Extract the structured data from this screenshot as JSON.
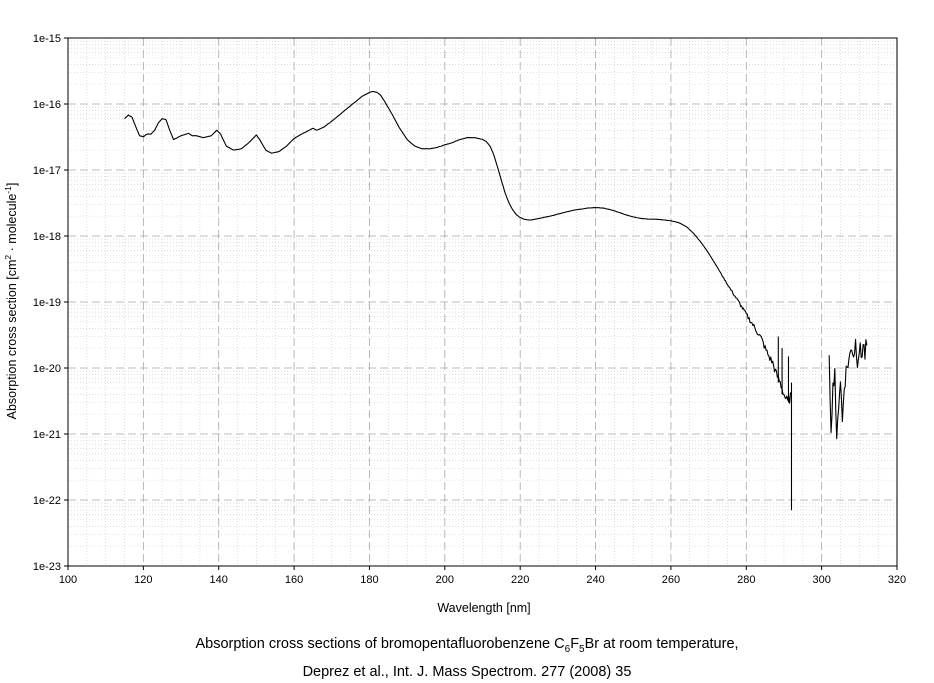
{
  "caption": {
    "line1_pre": "Absorption cross sections of bromopentafluorobenzene C",
    "sub_c": "6",
    "f_letter": "F",
    "sub_f": "5",
    "line1_post": "Br at room temperature,",
    "line2": "Deprez et al., Int. J. Mass Spectrom. 277 (2008) 35"
  },
  "chart_data": {
    "type": "line",
    "title": "",
    "xlabel": "Wavelength [nm]",
    "ylabel_parts": [
      "Absorption cross section [cm",
      "2",
      " · molecule",
      "-1",
      "]"
    ],
    "xlim": [
      100,
      320
    ],
    "ylim": [
      1e-23,
      1e-15
    ],
    "yscale": "log",
    "grid": true,
    "xticks": [
      100,
      120,
      140,
      160,
      180,
      200,
      220,
      240,
      260,
      280,
      300,
      320
    ],
    "ytick_labels": [
      "1e-23",
      "1e-22",
      "1e-21",
      "1e-20",
      "1e-19",
      "1e-18",
      "1e-17",
      "1e-16",
      "1e-15"
    ],
    "series": [
      {
        "line_color": "#000000",
        "x": [
          115,
          116,
          117,
          118,
          119,
          120,
          121,
          122,
          123,
          124,
          125,
          126,
          127,
          128,
          130,
          132,
          133,
          134,
          136,
          138,
          139.5,
          140.5,
          142,
          144,
          146,
          148,
          150,
          151,
          152.5,
          154,
          156,
          158,
          160,
          162,
          164,
          165,
          166,
          168,
          170,
          172,
          174,
          176,
          178,
          180,
          181,
          182,
          183,
          184,
          186,
          188,
          190,
          192,
          194,
          196,
          198,
          200,
          202,
          204,
          206,
          208,
          210,
          211,
          212,
          213,
          214,
          215,
          216,
          217,
          218,
          219,
          220,
          221,
          222,
          223,
          224,
          226,
          228,
          230,
          232,
          234,
          236,
          238,
          240,
          242,
          244,
          246,
          248,
          250,
          252,
          254,
          256,
          258,
          260,
          262,
          264,
          266,
          268,
          270,
          272,
          274,
          276,
          278,
          280,
          282,
          284,
          285,
          286,
          287,
          288,
          289,
          290,
          291,
          292
        ],
        "y": [
          6e-17,
          6.8e-17,
          6.3e-17,
          4.5e-17,
          3.3e-17,
          3.2e-17,
          3.5e-17,
          3.5e-17,
          4e-17,
          5.2e-17,
          6e-17,
          5.8e-17,
          4e-17,
          2.9e-17,
          3.3e-17,
          3.6e-17,
          3.3e-17,
          3.3e-17,
          3.1e-17,
          3.3e-17,
          4e-17,
          3.5e-17,
          2.3e-17,
          2e-17,
          2.1e-17,
          2.6e-17,
          3.4e-17,
          2.8e-17,
          2e-17,
          1.8e-17,
          1.9e-17,
          2.3e-17,
          3e-17,
          3.5e-17,
          4e-17,
          4.3e-17,
          4e-17,
          4.5e-17,
          5.5e-17,
          6.8e-17,
          8.5e-17,
          1.05e-16,
          1.3e-16,
          1.5e-16,
          1.55e-16,
          1.5e-16,
          1.35e-16,
          1.1e-16,
          7e-17,
          4.3e-17,
          2.9e-17,
          2.3e-17,
          2.1e-17,
          2.1e-17,
          2.2e-17,
          2.4e-17,
          2.6e-17,
          2.9e-17,
          3.1e-17,
          3.1e-17,
          2.9e-17,
          2.7e-17,
          2.3e-17,
          1.7e-17,
          1.1e-17,
          7e-18,
          4.5e-18,
          3.2e-18,
          2.5e-18,
          2.1e-18,
          1.9e-18,
          1.8e-18,
          1.75e-18,
          1.75e-18,
          1.8e-18,
          1.9e-18,
          2e-18,
          2.15e-18,
          2.3e-18,
          2.45e-18,
          2.55e-18,
          2.65e-18,
          2.7e-18,
          2.65e-18,
          2.5e-18,
          2.3e-18,
          2.1e-18,
          1.95e-18,
          1.85e-18,
          1.8e-18,
          1.8e-18,
          1.75e-18,
          1.7e-18,
          1.6e-18,
          1.4e-18,
          1.1e-18,
          8e-19,
          5.5e-19,
          3.6e-19,
          2.3e-19,
          1.5e-19,
          1e-19,
          6.5e-20,
          4.3e-20,
          2.8e-20,
          2e-20,
          1.5e-20,
          1.2e-20,
          8e-21,
          6e-21,
          4e-21,
          3e-21,
          4e-21
        ]
      },
      {
        "line_color": "#000000",
        "x": [
          302,
          302.5,
          303,
          303.5,
          304,
          304.5,
          305,
          305.5,
          306,
          306.5,
          307,
          307.5,
          308,
          308.5,
          309,
          309.5,
          310,
          310.5,
          311,
          311.5,
          312
        ],
        "y": [
          1.2e-20,
          1.3e-21,
          5e-21,
          1e-20,
          6.5e-22,
          3e-21,
          7e-21,
          1.5e-21,
          5.5e-21,
          9e-21,
          1.2e-20,
          1.5e-20,
          2.2e-20,
          1.6e-20,
          2.5e-20,
          1.4e-20,
          2e-20,
          1.5e-20,
          2.3e-20,
          1.6e-20,
          2.2e-20
        ]
      }
    ],
    "spikes": [
      {
        "x": 288.5,
        "y1": 3e-20,
        "y2": 6e-21
      },
      {
        "x": 289.5,
        "y1": 2e-20,
        "y2": 4e-21
      },
      {
        "x": 291.2,
        "y1": 1.5e-20,
        "y2": 3e-21
      },
      {
        "x": 292.0,
        "y1": 6e-21,
        "y2": 7e-23
      }
    ]
  }
}
